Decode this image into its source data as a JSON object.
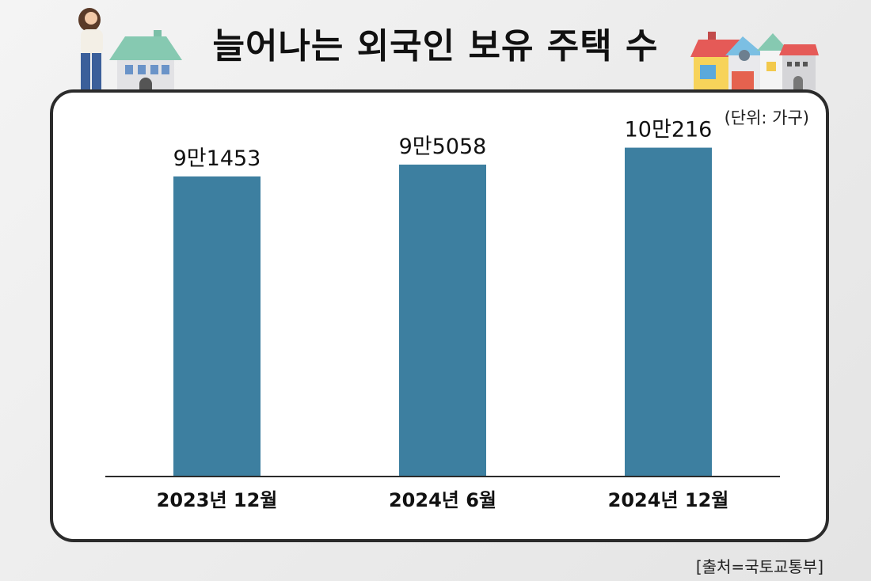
{
  "title": "늘어나는 외국인 보유 주택 수",
  "unit_label": "(단위: 가구)",
  "source": "[출처=국토교통부]",
  "colors": {
    "bar": "#3d7fa0",
    "axis": "#2b2b2b",
    "frame": "#2b2b2b"
  },
  "chart_data": {
    "type": "bar",
    "title": "늘어나는 외국인 보유 주택 수",
    "xlabel": "",
    "ylabel": "",
    "ylim": [
      0,
      110000
    ],
    "grid": false,
    "categories": [
      "2023년 12월",
      "2024년 6월",
      "2024년 12월"
    ],
    "values": [
      91453,
      95058,
      100216
    ],
    "data_labels": [
      "9만1453",
      "9만5058",
      "10만216"
    ]
  }
}
